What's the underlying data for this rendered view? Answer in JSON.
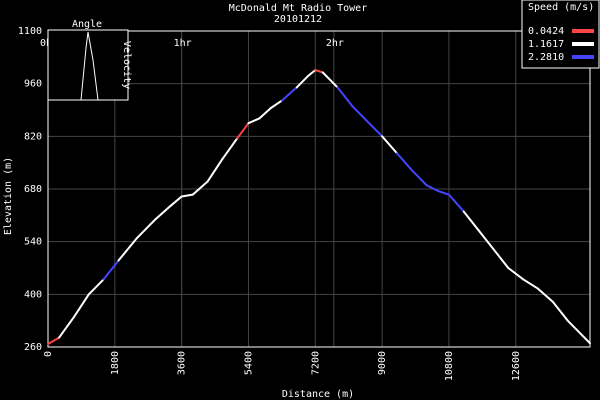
{
  "chart_data": {
    "type": "line",
    "title": "McDonald Mt Radio Tower",
    "subtitle": "20101212",
    "xlabel": "Distance (m)",
    "ylabel": "Elevation (m)",
    "xlim": [
      0,
      14600
    ],
    "ylim": [
      260,
      1100
    ],
    "x_ticks": [
      0,
      1800,
      3600,
      5400,
      7200,
      9000,
      10800,
      12600
    ],
    "y_ticks": [
      260,
      400,
      540,
      680,
      820,
      960,
      1100
    ],
    "time_ticks": [
      {
        "label": "0h",
        "x": 0
      },
      {
        "label": "1hr",
        "x": 3600
      },
      {
        "label": "2hr",
        "x": 7700
      }
    ],
    "legend": {
      "title": "Speed (m/s)",
      "placement": "top-right",
      "items": [
        {
          "label": "0.0424",
          "color": "#ff4444"
        },
        {
          "label": "1.1617",
          "color": "#ffffff"
        },
        {
          "label": "2.2810",
          "color": "#4444ff"
        }
      ]
    },
    "inset": {
      "label_left": "Angle",
      "label_right": "Velocity",
      "placement": "top-left"
    },
    "grid": true,
    "series": [
      {
        "x": [
          0,
          300,
          700,
          1100,
          1500,
          1900,
          2400,
          2900,
          3300,
          3600,
          3900,
          4300,
          4700,
          5100,
          5400,
          5700,
          6000,
          6300,
          6700,
          7000,
          7200,
          7400,
          7800,
          8200,
          8600,
          9000,
          9400,
          9800,
          10200,
          10500,
          10800,
          11200,
          11600,
          12000,
          12400,
          12800,
          13200,
          13600,
          14000,
          14400,
          14600
        ],
        "y": [
          268,
          285,
          340,
          400,
          440,
          490,
          550,
          600,
          635,
          660,
          665,
          700,
          760,
          815,
          855,
          868,
          895,
          915,
          950,
          980,
          996,
          990,
          950,
          900,
          860,
          820,
          775,
          730,
          690,
          675,
          665,
          620,
          570,
          520,
          470,
          440,
          415,
          380,
          330,
          290,
          270
        ],
        "speed": [
          "slow",
          "mid",
          "mid",
          "mid",
          "fast",
          "mid",
          "mid",
          "mid",
          "mid",
          "mid",
          "mid",
          "mid",
          "mid",
          "slow",
          "mid",
          "mid",
          "mid",
          "fast",
          "mid",
          "mid",
          "slow",
          "mid",
          "fast",
          "fast",
          "fast",
          "mid",
          "fast",
          "fast",
          "fast",
          "fast",
          "fast",
          "mid",
          "mid",
          "mid",
          "mid",
          "mid",
          "mid",
          "mid",
          "mid",
          "mid",
          "mid"
        ]
      }
    ]
  }
}
